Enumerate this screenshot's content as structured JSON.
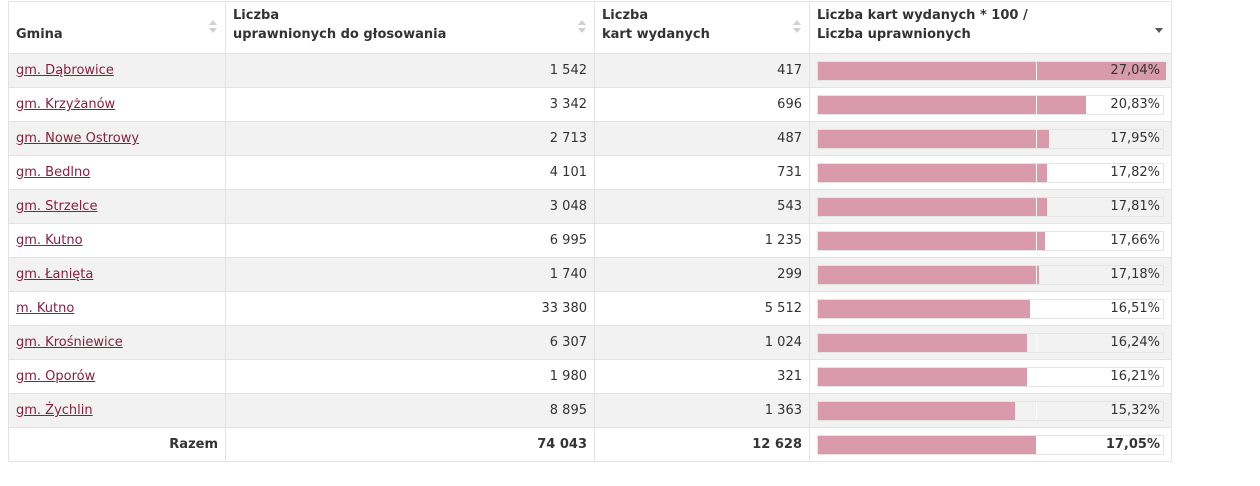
{
  "table": {
    "headers": {
      "gmina": "Gmina",
      "uprawnionych_line1": "Liczba",
      "uprawnionych_line2": "uprawnionych do głosowania",
      "karty_line1": "Liczba",
      "karty_line2": "kart wydanych",
      "frekwencja_line1": "Liczba kart wydanych * 100 /",
      "frekwencja_line2": "Liczba uprawnionych"
    },
    "rows": [
      {
        "gmina": "gm. Dąbrowice",
        "uprawnionych": "1 542",
        "karty": "417",
        "pct_label": "27,04%",
        "pct": 27.04
      },
      {
        "gmina": "gm. Krzyżanów",
        "uprawnionych": "3 342",
        "karty": "696",
        "pct_label": "20,83%",
        "pct": 20.83
      },
      {
        "gmina": "gm. Nowe Ostrowy",
        "uprawnionych": "2 713",
        "karty": "487",
        "pct_label": "17,95%",
        "pct": 17.95
      },
      {
        "gmina": "gm. Bedlno",
        "uprawnionych": "4 101",
        "karty": "731",
        "pct_label": "17,82%",
        "pct": 17.82
      },
      {
        "gmina": "gm. Strzelce",
        "uprawnionych": "3 048",
        "karty": "543",
        "pct_label": "17,81%",
        "pct": 17.81
      },
      {
        "gmina": "gm. Kutno",
        "uprawnionych": "6 995",
        "karty": "1 235",
        "pct_label": "17,66%",
        "pct": 17.66
      },
      {
        "gmina": "gm. Łanięta",
        "uprawnionych": "1 740",
        "karty": "299",
        "pct_label": "17,18%",
        "pct": 17.18
      },
      {
        "gmina": "m. Kutno",
        "uprawnionych": "33 380",
        "karty": "5 512",
        "pct_label": "16,51%",
        "pct": 16.51
      },
      {
        "gmina": "gm. Krośniewice",
        "uprawnionych": "6 307",
        "karty": "1 024",
        "pct_label": "16,24%",
        "pct": 16.24
      },
      {
        "gmina": "gm. Oporów",
        "uprawnionych": "1 980",
        "karty": "321",
        "pct_label": "16,21%",
        "pct": 16.21
      },
      {
        "gmina": "gm. Żychlin",
        "uprawnionych": "8 895",
        "karty": "1 363",
        "pct_label": "15,32%",
        "pct": 15.32
      }
    ],
    "total": {
      "label": "Razem",
      "uprawnionych": "74 043",
      "karty": "12 628",
      "pct_label": "17,05%",
      "pct": 17.05
    },
    "bar_max_pct": 27.04,
    "colors": {
      "bar_fill": "#d99aab",
      "link": "#8a1f3d"
    }
  }
}
